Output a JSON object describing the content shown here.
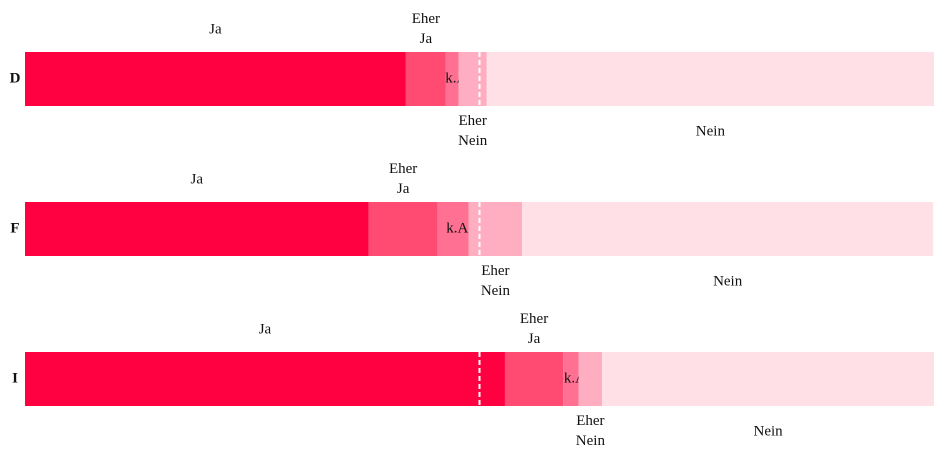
{
  "chart_data": {
    "type": "stacked_bar_h",
    "categories": [
      "D",
      "F",
      "I"
    ],
    "series": [
      {
        "name": "Ja",
        "color": "#ff0040",
        "values": [
          41.9,
          37.8,
          52.8
        ]
      },
      {
        "name": "Eher Ja",
        "color": "#ff4b72",
        "values": [
          4.4,
          7.6,
          6.4
        ]
      },
      {
        "name": "k.A.",
        "color": "#ff7092",
        "values": [
          1.4,
          3.4,
          1.7
        ]
      },
      {
        "name": "Eher Nein",
        "color": "#ffadc0",
        "values": [
          3.1,
          5.9,
          2.6
        ]
      },
      {
        "name": "Nein",
        "color": "#ffe0e7",
        "values": [
          49.2,
          45.2,
          36.5
        ]
      }
    ],
    "xlim": [
      0,
      100
    ],
    "reference_line": 50
  }
}
